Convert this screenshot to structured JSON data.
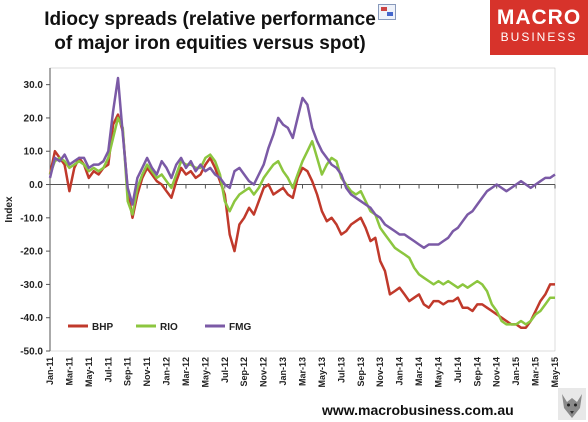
{
  "header": {
    "title_line1": "Idiocy spreads (relative performance",
    "title_line2": "of major iron equities versus spot)"
  },
  "logo": {
    "line1": "MACRO",
    "line2": "BUSINESS",
    "color": "#d7332b"
  },
  "footer": {
    "url": "www.macrobusiness.com.au"
  },
  "chart_data": {
    "type": "line",
    "title": "Idiocy spreads (relative performance of major iron equities versus spot)",
    "ylabel": "Index",
    "xlabel": "",
    "ylim": [
      -50,
      35
    ],
    "yticks": [
      30,
      20,
      10,
      0,
      -10,
      -20,
      -30,
      -40,
      -50
    ],
    "ytick_labels": [
      "30.0",
      "20.0",
      "10.0",
      "0.0",
      "-10.0",
      "-20.0",
      "-30.0",
      "-40.0",
      "-50.0"
    ],
    "x_tick_labels": [
      "Jan-11",
      "Mar-11",
      "May-11",
      "Jul-11",
      "Sep-11",
      "Nov-11",
      "Jan-12",
      "Mar-12",
      "May-12",
      "Jul-12",
      "Sep-12",
      "Nov-12",
      "Jan-13",
      "Mar-13",
      "May-13",
      "Jul-13",
      "Sep-13",
      "Nov-13",
      "Jan-14",
      "Mar-14",
      "May-14",
      "Jul-14",
      "Sep-14",
      "Nov-14",
      "Jan-15",
      "Mar-15",
      "May-15"
    ],
    "grid": false,
    "legend": "bottom-left",
    "series": [
      {
        "name": "BHP",
        "color": "#c0392b",
        "x": [
          0,
          0.5,
          1,
          1.5,
          2,
          2.5,
          3,
          3.5,
          4,
          4.5,
          5,
          5.5,
          6,
          6.5,
          7,
          7.5,
          8,
          8.5,
          9,
          9.5,
          10,
          10.5,
          11,
          11.5,
          12,
          12.5,
          13,
          13.5,
          14,
          14.5,
          15,
          15.5,
          16,
          16.5,
          17,
          17.5,
          18,
          18.5,
          19,
          19.5,
          20,
          20.5,
          21,
          21.5,
          22,
          22.5,
          23,
          23.5,
          24,
          24.5,
          25,
          25.5,
          26,
          26.5,
          27,
          27.5,
          28,
          28.5,
          29,
          29.5,
          30,
          30.5,
          31,
          31.5,
          32,
          32.5,
          33,
          33.5,
          34,
          34.5,
          35,
          35.5,
          36,
          36.5,
          37,
          37.5,
          38,
          38.5,
          39,
          39.5,
          40,
          40.5,
          41,
          41.5,
          42,
          42.5,
          43,
          43.5,
          44,
          44.5,
          45,
          45.5,
          46,
          46.5,
          47,
          47.5,
          48,
          48.5,
          49,
          49.5,
          50,
          50.5,
          51,
          51.5,
          52
        ],
        "y": [
          3,
          10,
          8,
          6,
          -2,
          5,
          8,
          6,
          2,
          4,
          3,
          5,
          6,
          18,
          21,
          16,
          -2,
          -10,
          -3,
          2,
          5,
          3,
          1,
          0,
          -2,
          -4,
          1,
          5,
          3,
          4,
          2,
          3,
          6,
          8,
          5,
          1,
          -3,
          -15,
          -20,
          -12,
          -10,
          -7,
          -9,
          -5,
          -1,
          0,
          -3,
          -2,
          -1,
          -3,
          -4,
          2,
          5,
          4,
          1,
          -3,
          -8,
          -11,
          -10,
          -12,
          -15,
          -14,
          -12,
          -11,
          -10,
          -13,
          -17,
          -16,
          -23,
          -26,
          -33,
          -32,
          -31,
          -33,
          -35,
          -34,
          -33,
          -36,
          -37,
          -35,
          -35,
          -36,
          -35,
          -35,
          -34,
          -37,
          -37,
          -38,
          -36,
          -36,
          -37,
          -38,
          -39,
          -40,
          -41,
          -42,
          -42,
          -43,
          -43,
          -41,
          -38,
          -35,
          -33,
          -30,
          -30
        ]
      },
      {
        "name": "RIO",
        "color": "#8cc63f",
        "x": [
          0,
          0.5,
          1,
          1.5,
          2,
          2.5,
          3,
          3.5,
          4,
          4.5,
          5,
          5.5,
          6,
          6.5,
          7,
          7.5,
          8,
          8.5,
          9,
          9.5,
          10,
          10.5,
          11,
          11.5,
          12,
          12.5,
          13,
          13.5,
          14,
          14.5,
          15,
          15.5,
          16,
          16.5,
          17,
          17.5,
          18,
          18.5,
          19,
          19.5,
          20,
          20.5,
          21,
          21.5,
          22,
          22.5,
          23,
          23.5,
          24,
          24.5,
          25,
          25.5,
          26,
          26.5,
          27,
          27.5,
          28,
          28.5,
          29,
          29.5,
          30,
          30.5,
          31,
          31.5,
          32,
          32.5,
          33,
          33.5,
          34,
          34.5,
          35,
          35.5,
          36,
          36.5,
          37,
          37.5,
          38,
          38.5,
          39,
          39.5,
          40,
          40.5,
          41,
          41.5,
          42,
          42.5,
          43,
          43.5,
          44,
          44.5,
          45,
          45.5,
          46,
          46.5,
          47,
          47.5,
          48,
          48.5,
          49,
          49.5,
          50,
          50.5,
          51,
          51.5,
          52
        ],
        "y": [
          3,
          7,
          8,
          7,
          5,
          6,
          7,
          6,
          4,
          5,
          4,
          5,
          8,
          14,
          20,
          17,
          -5,
          -9,
          -1,
          3,
          6,
          4,
          2,
          3,
          1,
          -1,
          3,
          7,
          6,
          6,
          5,
          5,
          8,
          9,
          7,
          3,
          -5,
          -8,
          -5,
          -3,
          -2,
          -1,
          -3,
          -1,
          2,
          4,
          6,
          7,
          4,
          2,
          -1,
          3,
          7,
          10,
          13,
          8,
          3,
          6,
          8,
          7,
          2,
          0,
          -2,
          -3,
          -2,
          -5,
          -8,
          -9,
          -13,
          -15,
          -17,
          -19,
          -20,
          -21,
          -22,
          -25,
          -27,
          -28,
          -29,
          -30,
          -29,
          -30,
          -29,
          -30,
          -31,
          -30,
          -31,
          -30,
          -29,
          -30,
          -32,
          -36,
          -38,
          -41,
          -42,
          -42,
          -42,
          -41,
          -42,
          -41,
          -39,
          -38,
          -36,
          -34,
          -34
        ]
      },
      {
        "name": "FMG",
        "color": "#7b5aa6",
        "x": [
          0,
          0.5,
          1,
          1.5,
          2,
          2.5,
          3,
          3.5,
          4,
          4.5,
          5,
          5.5,
          6,
          6.5,
          7,
          7.5,
          8,
          8.5,
          9,
          9.5,
          10,
          10.5,
          11,
          11.5,
          12,
          12.5,
          13,
          13.5,
          14,
          14.5,
          15,
          15.5,
          16,
          16.5,
          17,
          17.5,
          18,
          18.5,
          19,
          19.5,
          20,
          20.5,
          21,
          21.5,
          22,
          22.5,
          23,
          23.5,
          24,
          24.5,
          25,
          25.5,
          26,
          26.5,
          27,
          27.5,
          28,
          28.5,
          29,
          29.5,
          30,
          30.5,
          31,
          31.5,
          32,
          32.5,
          33,
          33.5,
          34,
          34.5,
          35,
          35.5,
          36,
          36.5,
          37,
          37.5,
          38,
          38.5,
          39,
          39.5,
          40,
          40.5,
          41,
          41.5,
          42,
          42.5,
          43,
          43.5,
          44,
          44.5,
          45,
          45.5,
          46,
          46.5,
          47,
          47.5,
          48,
          48.5,
          49,
          49.5,
          50,
          50.5,
          51,
          51.5,
          52
        ],
        "y": [
          2,
          8,
          7,
          9,
          6,
          7,
          8,
          8,
          5,
          6,
          6,
          7,
          10,
          22,
          32,
          15,
          -1,
          -6,
          2,
          5,
          8,
          5,
          3,
          7,
          5,
          2,
          6,
          8,
          5,
          7,
          4,
          6,
          4,
          5,
          3,
          2,
          0,
          -1,
          4,
          5,
          3,
          1,
          0,
          3,
          6,
          11,
          15,
          20,
          18,
          17,
          14,
          20,
          26,
          24,
          17,
          13,
          10,
          8,
          6,
          5,
          3,
          -1,
          -3,
          -4,
          -5,
          -6,
          -7,
          -9,
          -10,
          -12,
          -13,
          -14,
          -15,
          -15,
          -16,
          -17,
          -18,
          -19,
          -18,
          -18,
          -18,
          -17,
          -16,
          -14,
          -13,
          -11,
          -9,
          -8,
          -6,
          -4,
          -2,
          -1,
          0,
          -1,
          -2,
          -1,
          0,
          1,
          0,
          -1,
          0,
          1,
          2,
          2,
          3
        ]
      }
    ]
  }
}
